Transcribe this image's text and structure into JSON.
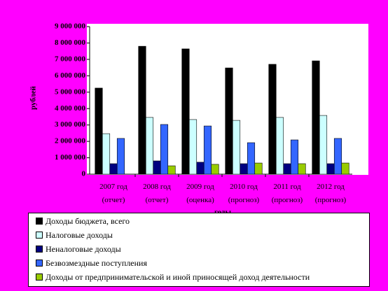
{
  "chart_data": {
    "type": "bar",
    "y_label": "рублей",
    "x_label": "годы",
    "categories": [
      "2007 год (отчет)",
      "2008 год (отчет)",
      "2009 год (оценка)",
      "2010 год (прогноз)",
      "2011 год (прогноз)",
      "2012 год (прогноз)"
    ],
    "series": [
      {
        "name": "Доходы бюджета, всего",
        "color": "#000000",
        "values": [
          5250000,
          7800000,
          7640000,
          6480000,
          6700000,
          6910000
        ]
      },
      {
        "name": "Налоговые доходы",
        "color": "#ccffff",
        "values": [
          2470000,
          3460000,
          3330000,
          3280000,
          3460000,
          3580000
        ]
      },
      {
        "name": "Неналоговые доходы",
        "color": "#000080",
        "values": [
          640000,
          810000,
          730000,
          640000,
          640000,
          640000
        ]
      },
      {
        "name": "Безвозмездные поступления",
        "color": "#3366ff",
        "values": [
          2180000,
          3030000,
          2940000,
          1920000,
          2090000,
          2180000
        ]
      },
      {
        "name": "Доходы от предпринимательской и иной приносящей доход деятельности",
        "color": "#99cc00",
        "values": [
          null,
          510000,
          600000,
          680000,
          640000,
          680000
        ]
      }
    ],
    "ylim": [
      0,
      9000000
    ],
    "yticks": [
      {
        "value": 0,
        "label": "0"
      },
      {
        "value": 1000000,
        "label": "1 000 000"
      },
      {
        "value": 2000000,
        "label": "2 000 000"
      },
      {
        "value": 3000000,
        "label": "3 000 000"
      },
      {
        "value": 4000000,
        "label": "4 000 000"
      },
      {
        "value": 5000000,
        "label": "5 000 000"
      },
      {
        "value": 6000000,
        "label": "6 000 000"
      },
      {
        "value": 7000000,
        "label": "7 000 000"
      },
      {
        "value": 8000000,
        "label": "8 000 000"
      },
      {
        "value": 9000000,
        "label": "9 000 000"
      }
    ]
  }
}
